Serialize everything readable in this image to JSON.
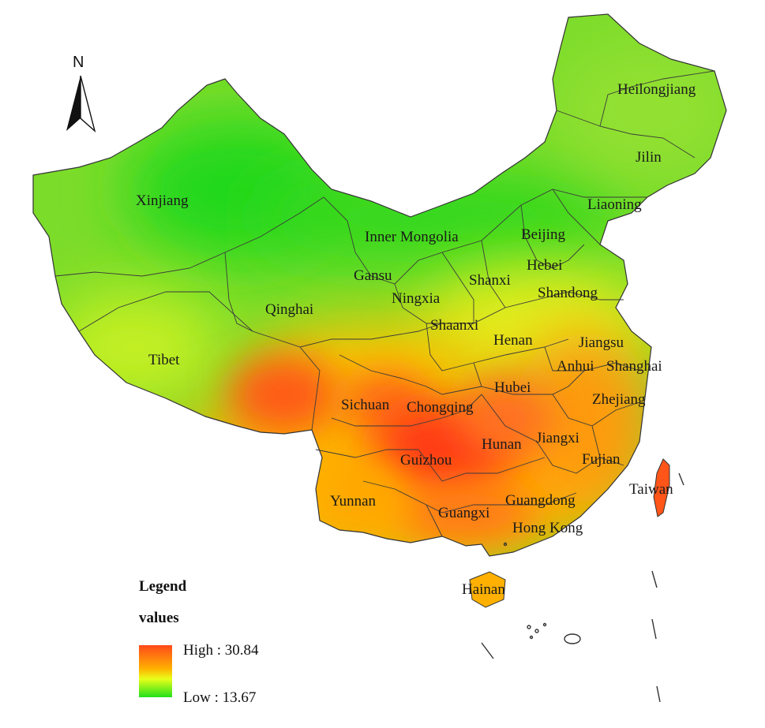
{
  "north_label": "N",
  "legend": {
    "title": "Legend",
    "subtitle": "values",
    "high_label": "High : 30.84",
    "low_label": "Low : 13.67",
    "high_value": 30.84,
    "low_value": 13.67,
    "colors": [
      "#ff4a1a",
      "#ffb000",
      "#e8ff1a",
      "#22e01a"
    ]
  },
  "regions": [
    {
      "name": "Heilongjiang"
    },
    {
      "name": "Jilin"
    },
    {
      "name": "Liaoning"
    },
    {
      "name": "Xinjiang"
    },
    {
      "name": "Inner Mongolia"
    },
    {
      "name": "Beijing"
    },
    {
      "name": "Hebei"
    },
    {
      "name": "Gansu"
    },
    {
      "name": "Shanxi"
    },
    {
      "name": "Ningxia"
    },
    {
      "name": "Shandong"
    },
    {
      "name": "Qinghai"
    },
    {
      "name": "Shaanxi"
    },
    {
      "name": "Henan"
    },
    {
      "name": "Jiangsu"
    },
    {
      "name": "Tibet"
    },
    {
      "name": "Anhui"
    },
    {
      "name": "Shanghai"
    },
    {
      "name": "Hubei"
    },
    {
      "name": "Sichuan"
    },
    {
      "name": "Chongqing"
    },
    {
      "name": "Zhejiang"
    },
    {
      "name": "Hunan"
    },
    {
      "name": "Jiangxi"
    },
    {
      "name": "Guizhou"
    },
    {
      "name": "Fujian"
    },
    {
      "name": "Taiwan"
    },
    {
      "name": "Yunnan"
    },
    {
      "name": "Guangxi"
    },
    {
      "name": "Guangdong"
    },
    {
      "name": "Hong Kong"
    },
    {
      "name": "Hainan"
    }
  ]
}
